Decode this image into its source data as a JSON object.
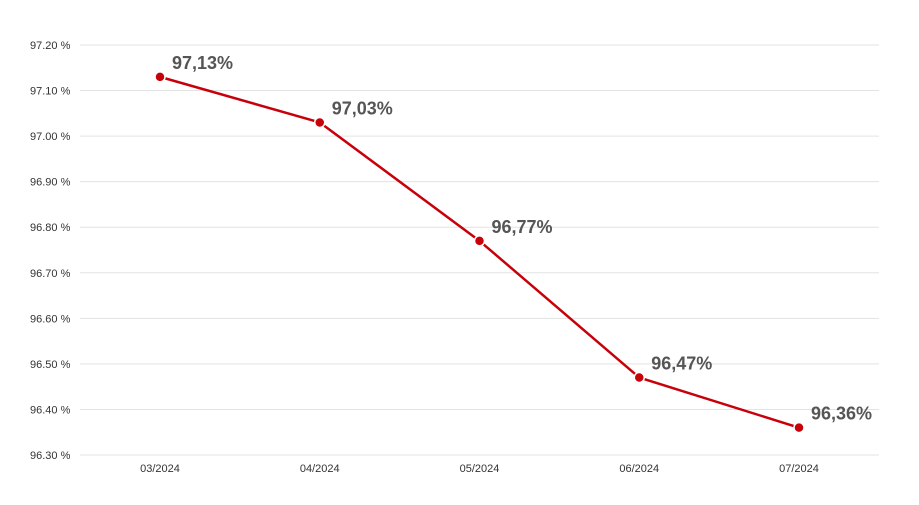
{
  "chart_data": {
    "type": "line",
    "categories": [
      "03/2024",
      "04/2024",
      "05/2024",
      "06/2024",
      "07/2024"
    ],
    "series": [
      {
        "values": [
          97.13,
          97.03,
          96.77,
          96.47,
          96.36
        ],
        "data_labels": [
          "97,13%",
          "97,03%",
          "96,77%",
          "96,47%",
          "96,36%"
        ]
      }
    ],
    "y_ticks": [
      96.3,
      96.4,
      96.5,
      96.6,
      96.7,
      96.8,
      96.9,
      97.0,
      97.1,
      97.2
    ],
    "y_tick_labels": [
      "96.30 %",
      "96.40 %",
      "96.50 %",
      "96.60 %",
      "96.70 %",
      "96.80 %",
      "96.90 %",
      "97.00 %",
      "97.10 %",
      "97.20 %"
    ],
    "ylim": [
      96.3,
      97.2
    ],
    "grid": true,
    "line_color": "#c8000a",
    "title": "",
    "xlabel": "",
    "ylabel": ""
  }
}
